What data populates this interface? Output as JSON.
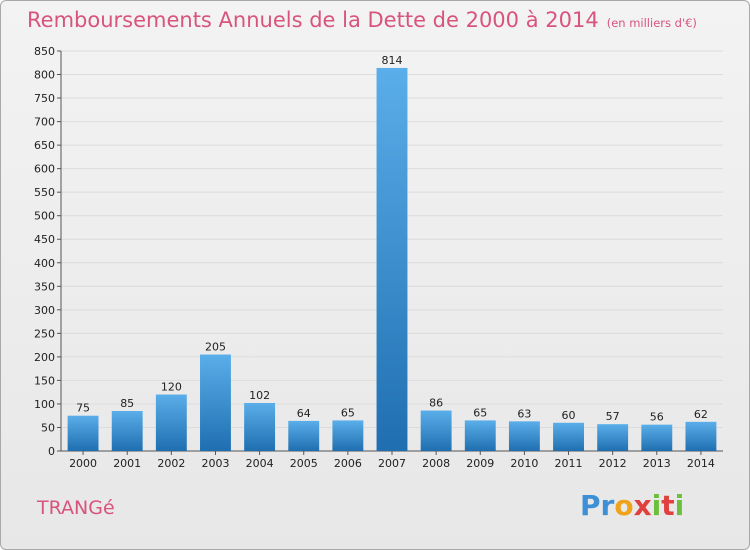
{
  "header": {
    "title": "Remboursements Annuels de la Dette de 2000 à 2014",
    "unit": "(en milliers d'€)"
  },
  "footer": {
    "commune": "TRANGé",
    "brand_letters": [
      {
        "ch": "P",
        "color": "#3d8fd6"
      },
      {
        "ch": "r",
        "color": "#3d8fd6"
      },
      {
        "ch": "o",
        "color": "#f0a21a"
      },
      {
        "ch": "x",
        "color": "#e0413e"
      },
      {
        "ch": "i",
        "color": "#6cbf3b"
      },
      {
        "ch": "t",
        "color": "#e0413e"
      },
      {
        "ch": "i",
        "color": "#6cbf3b"
      }
    ]
  },
  "colors": {
    "title": "#d8547d",
    "bar_top": "#5aaee9",
    "bar_bottom": "#1f6fb0",
    "grid": "#dddddd"
  },
  "chart_data": {
    "type": "bar",
    "title": "Remboursements Annuels de la Dette de 2000 à 2014",
    "subtitle": "(en milliers d'€)",
    "categories": [
      "2000",
      "2001",
      "2002",
      "2003",
      "2004",
      "2005",
      "2006",
      "2007",
      "2008",
      "2009",
      "2010",
      "2011",
      "2012",
      "2013",
      "2014"
    ],
    "values": [
      75,
      85,
      120,
      205,
      102,
      64,
      65,
      814,
      86,
      65,
      63,
      60,
      57,
      56,
      62
    ],
    "ylim": [
      0,
      850
    ],
    "yticks": [
      0,
      50,
      100,
      150,
      200,
      250,
      300,
      350,
      400,
      450,
      500,
      550,
      600,
      650,
      700,
      750,
      800,
      850
    ],
    "grid": true,
    "xlabel": "",
    "ylabel": ""
  }
}
